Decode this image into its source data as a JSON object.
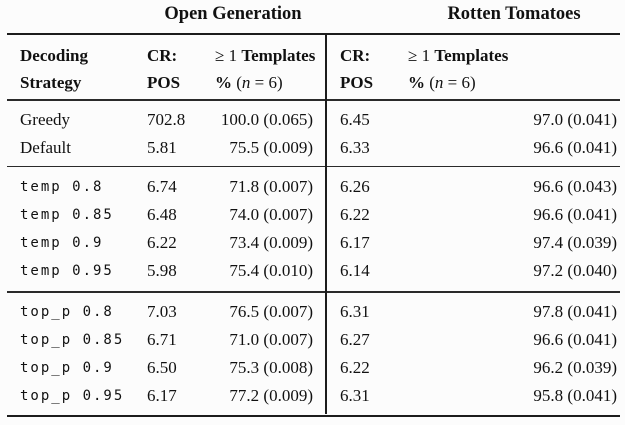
{
  "page": {
    "background_color": "#fcfcfc",
    "text_color": "#111111",
    "rule_color": "#1c1c1c"
  },
  "table": {
    "group_headers": [
      {
        "label": "Open Generation"
      },
      {
        "label": "Rotten Tomatoes"
      }
    ],
    "row_header": {
      "line1": "Decoding",
      "line2": "Strategy"
    },
    "metric_headers": {
      "cr": {
        "line1": "CR:",
        "line2": "POS"
      },
      "templates": {
        "line1_prefix": "≥ 1",
        "line1_bold": "Templates",
        "line2_bold": "%",
        "line2_open": "(",
        "line2_var": "n",
        "line2_rest": "= 6)"
      }
    },
    "sections": [
      {
        "name": "baselines",
        "rows": [
          {
            "label": "Greedy",
            "og_cr_pos": "702.8",
            "og_templates": "100.0 (0.065)",
            "rt_cr_pos": "6.45",
            "rt_templates": "97.0 (0.041)"
          },
          {
            "label": "Default",
            "og_cr_pos": "5.81",
            "og_templates": "75.5 (0.009)",
            "rt_cr_pos": "6.33",
            "rt_templates": "96.6 (0.041)"
          }
        ]
      },
      {
        "name": "temperature",
        "rows": [
          {
            "label": "temp 0.8",
            "og_cr_pos": "6.74",
            "og_templates": "71.8 (0.007)",
            "rt_cr_pos": "6.26",
            "rt_templates": "96.6 (0.043)"
          },
          {
            "label": "temp 0.85",
            "og_cr_pos": "6.48",
            "og_templates": "74.0 (0.007)",
            "rt_cr_pos": "6.22",
            "rt_templates": "96.6 (0.041)"
          },
          {
            "label": "temp 0.9",
            "og_cr_pos": "6.22",
            "og_templates": "73.4 (0.009)",
            "rt_cr_pos": "6.17",
            "rt_templates": "97.4 (0.039)"
          },
          {
            "label": "temp 0.95",
            "og_cr_pos": "5.98",
            "og_templates": "75.4 (0.010)",
            "rt_cr_pos": "6.14",
            "rt_templates": "97.2 (0.040)"
          }
        ]
      },
      {
        "name": "top_p",
        "rows": [
          {
            "label": "top_p 0.8",
            "og_cr_pos": "7.03",
            "og_templates": "76.5 (0.007)",
            "rt_cr_pos": "6.31",
            "rt_templates": "97.8 (0.041)"
          },
          {
            "label": "top_p 0.85",
            "og_cr_pos": "6.71",
            "og_templates": "71.0 (0.007)",
            "rt_cr_pos": "6.27",
            "rt_templates": "96.6 (0.041)"
          },
          {
            "label": "top_p 0.9",
            "og_cr_pos": "6.50",
            "og_templates": "75.3 (0.008)",
            "rt_cr_pos": "6.22",
            "rt_templates": "96.2 (0.039)"
          },
          {
            "label": "top_p 0.95",
            "og_cr_pos": "6.17",
            "og_templates": "77.2 (0.009)",
            "rt_cr_pos": "6.31",
            "rt_templates": "95.8 (0.041)"
          }
        ]
      }
    ]
  }
}
